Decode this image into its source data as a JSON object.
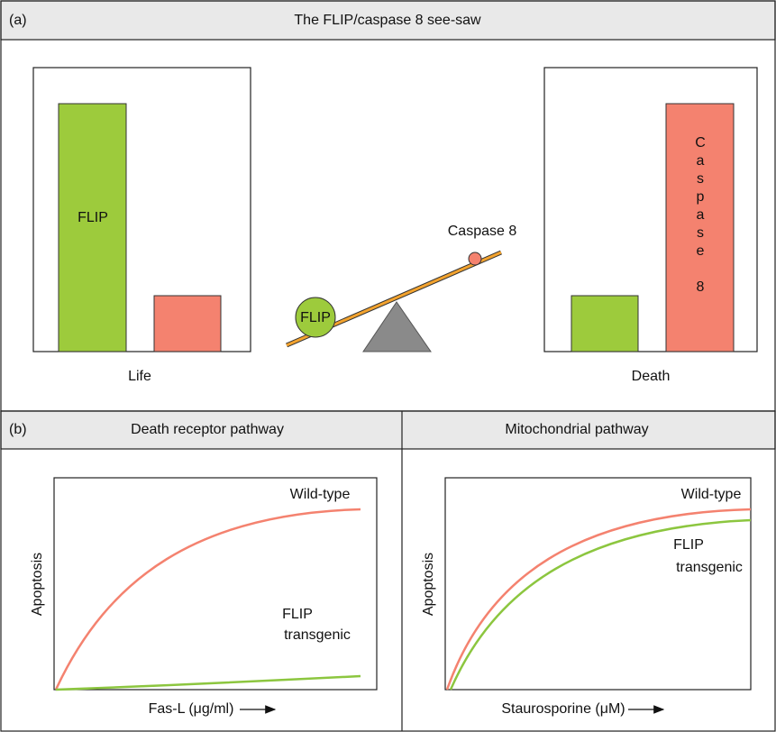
{
  "panel_a": {
    "label": "(a)",
    "title": "The FLIP/caspase 8 see-saw",
    "left_bar_label": "FLIP",
    "left_caption": "Life",
    "seesaw_left_ball": "FLIP",
    "seesaw_right_ball": "Caspase 8",
    "right_bar_label": "Caspase 8",
    "right_caption": "Death"
  },
  "panel_b": {
    "label": "(b)",
    "left": {
      "title": "Death receptor pathway",
      "y_label": "Apoptosis",
      "x_label": "Fas-L (μg/ml)",
      "wild_type": "Wild-type",
      "transgenic": [
        "FLIP",
        "transgenic"
      ]
    },
    "right": {
      "title": "Mitochondrial pathway",
      "y_label": "Apoptosis",
      "x_label": "Staurosporine (μM)",
      "wild_type": "Wild-type",
      "transgenic": [
        "FLIP",
        "transgenic"
      ]
    }
  }
}
